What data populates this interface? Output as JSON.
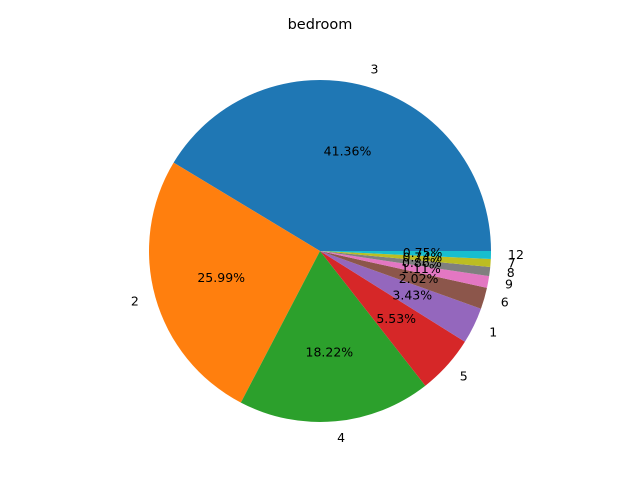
{
  "chart_data": {
    "type": "pie",
    "title": "bedroom",
    "slices": [
      {
        "label": "3",
        "value": 41.36,
        "pct_text": "41.36%",
        "color": "#1f77b4"
      },
      {
        "label": "2",
        "value": 25.99,
        "pct_text": "25.99%",
        "color": "#ff7f0e"
      },
      {
        "label": "4",
        "value": 18.22,
        "pct_text": "18.22%",
        "color": "#2ca02c"
      },
      {
        "label": "5",
        "value": 5.53,
        "pct_text": "5.53%",
        "color": "#d62728"
      },
      {
        "label": "1",
        "value": 3.43,
        "pct_text": "3.43%",
        "color": "#9467bd"
      },
      {
        "label": "6",
        "value": 2.02,
        "pct_text": "2.02%",
        "color": "#8c564b"
      },
      {
        "label": "9",
        "value": 1.11,
        "pct_text": "1.11%",
        "color": "#e377c2"
      },
      {
        "label": "8",
        "value": 0.86,
        "pct_text": "0.86%",
        "color": "#7f7f7f"
      },
      {
        "label": "7",
        "value": 0.74,
        "pct_text": "0.74%",
        "color": "#bcbd22"
      },
      {
        "label": "12",
        "value": 0.75,
        "pct_text": "0.75%",
        "color": "#17becf"
      }
    ],
    "start_angle": "0 degrees (3 o'clock)",
    "direction": "counterclockwise",
    "legend": "none"
  }
}
